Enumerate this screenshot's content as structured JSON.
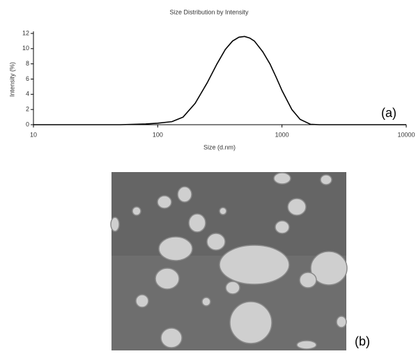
{
  "chart_data": {
    "type": "line",
    "title": "Size Distribution by Intensity",
    "x_label": "Size (d.nm)",
    "y_label": "Intensity (%)",
    "x_scale": "log",
    "x": [
      10,
      50,
      80,
      100,
      130,
      160,
      200,
      250,
      300,
      350,
      400,
      450,
      500,
      550,
      600,
      700,
      800,
      900,
      1000,
      1200,
      1400,
      1700,
      2000,
      10000
    ],
    "series": [
      {
        "color": "#000000",
        "values": [
          0,
          0,
          0.1,
          0.2,
          0.4,
          1,
          2.8,
          5.5,
          8,
          9.9,
          11,
          11.5,
          11.6,
          11.4,
          11,
          9.6,
          8,
          6.2,
          4.5,
          2,
          0.7,
          0.05,
          0,
          0
        ]
      }
    ],
    "xlim": [
      10,
      10000
    ],
    "xticks": [
      10,
      100,
      1000,
      10000
    ],
    "ylim": [
      0,
      12
    ],
    "yticks": [
      0,
      2,
      4,
      6,
      8,
      10,
      12
    ],
    "panel_label": "(a)"
  },
  "image_panel": {
    "label": "(b)"
  }
}
